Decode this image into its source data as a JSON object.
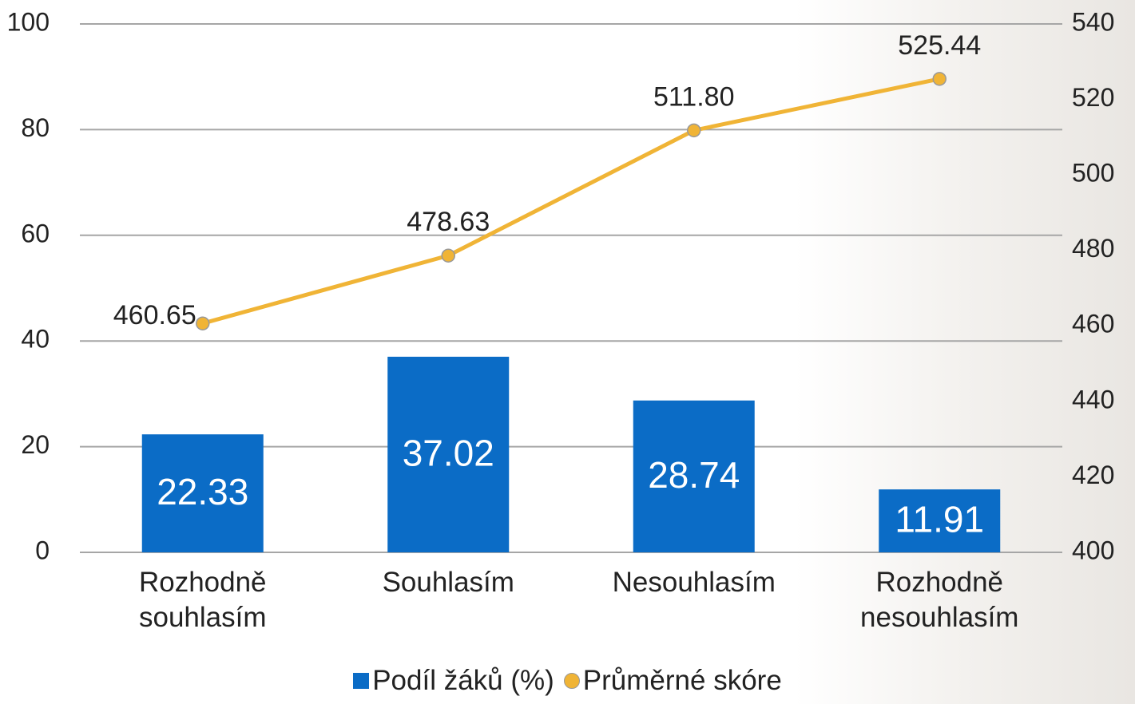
{
  "chart_data": {
    "type": "bar-line",
    "categories": [
      "Rozhodně souhlasím",
      "Souhlasím",
      "Nesouhlasím",
      "Rozhodně nesouhlasím"
    ],
    "series": [
      {
        "name": "Podíl žáků (%)",
        "type": "bar",
        "color": "#0b6cc6",
        "values": [
          22.33,
          37.02,
          28.74,
          11.91
        ]
      },
      {
        "name": "Průměrné skóre",
        "type": "line",
        "axis": "y2",
        "color": "#f0b436",
        "values": [
          460.65,
          478.63,
          511.8,
          525.44
        ],
        "value_labels": [
          "460.65",
          "478.63",
          "511.80",
          "525.44"
        ]
      }
    ],
    "ylim": [
      0,
      100
    ],
    "yticks": [
      0,
      20,
      40,
      60,
      80,
      100
    ],
    "y2lim": [
      400,
      540
    ],
    "y2ticks": [
      400,
      420,
      440,
      460,
      480,
      500,
      520,
      540
    ],
    "grid": true,
    "legend": "bottom"
  }
}
